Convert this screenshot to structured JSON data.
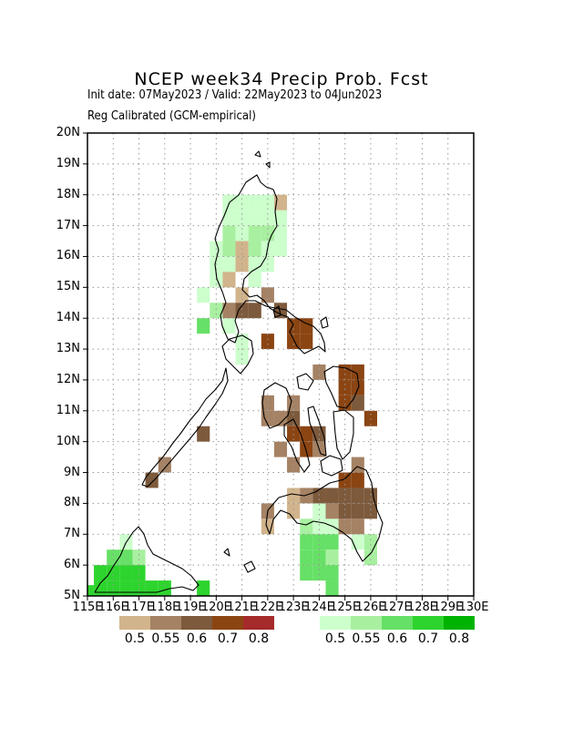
{
  "title": "NCEP week34 Precip Prob. Fcst",
  "subtitle_line1": "Init date: 07May2023 / Valid: 22May2023 to 04Jun2023",
  "subtitle_line2": "Reg Calibrated (GCM-empirical)",
  "y_axis": {
    "labels": [
      "5N",
      "6N",
      "7N",
      "8N",
      "9N",
      "10N",
      "11N",
      "12N",
      "13N",
      "14N",
      "15N",
      "16N",
      "17N",
      "18N",
      "19N",
      "20N"
    ]
  },
  "x_axis": {
    "labels": [
      "115E",
      "116E",
      "117E",
      "118E",
      "119E",
      "120E",
      "121E",
      "122E",
      "123E",
      "124E",
      "125E",
      "126E",
      "127E",
      "128E",
      "129E",
      "130E"
    ]
  },
  "legend_below": {
    "colors": [
      "#d2b48c",
      "#a58264",
      "#7d5a3c",
      "#8b4513",
      "#a52a2a"
    ],
    "labels": [
      "0.5",
      "0.55",
      "0.6",
      "0.7",
      "0.8"
    ]
  },
  "legend_above": {
    "colors": [
      "#ccffcc",
      "#a8f0a0",
      "#66e066",
      "#2ed42e",
      "#00b300"
    ],
    "labels": [
      "0.5",
      "0.55",
      "0.6",
      "0.7",
      "0.8"
    ]
  },
  "map_cells": {
    "above": [
      [
        120.5,
        17.75,
        0
      ],
      [
        121,
        17.75,
        0
      ],
      [
        121.5,
        17.75,
        0
      ],
      [
        122,
        17.75,
        0
      ],
      [
        120.5,
        17.25,
        0
      ],
      [
        121,
        17.25,
        0
      ],
      [
        121.5,
        17.25,
        0
      ],
      [
        122,
        17.25,
        0
      ],
      [
        122.5,
        17.25,
        0
      ],
      [
        120.5,
        16.75,
        1
      ],
      [
        121,
        16.75,
        0
      ],
      [
        121.5,
        16.75,
        1
      ],
      [
        122,
        16.75,
        1
      ],
      [
        122.5,
        16.75,
        0
      ],
      [
        120,
        16.25,
        0
      ],
      [
        120.5,
        16.25,
        1
      ],
      [
        121.5,
        16.25,
        1
      ],
      [
        122,
        16.25,
        0
      ],
      [
        122.5,
        16.25,
        0
      ],
      [
        120,
        15.75,
        0
      ],
      [
        120.5,
        15.75,
        0
      ],
      [
        121.5,
        15.75,
        0
      ],
      [
        122,
        15.75,
        0
      ],
      [
        120,
        15.25,
        0
      ],
      [
        120.5,
        15.25,
        0
      ],
      [
        121.5,
        15.25,
        0
      ],
      [
        119.5,
        14.75,
        0
      ],
      [
        120,
        14.25,
        1
      ],
      [
        119.5,
        13.75,
        2
      ],
      [
        120.5,
        13.75,
        0
      ],
      [
        121,
        13.25,
        0
      ],
      [
        121,
        12.75,
        0
      ],
      [
        124,
        7.75,
        0
      ],
      [
        123.5,
        7.25,
        1
      ],
      [
        124,
        7.25,
        0
      ],
      [
        124.5,
        7.25,
        0
      ],
      [
        123.5,
        6.75,
        2
      ],
      [
        124,
        6.75,
        2
      ],
      [
        124.5,
        6.75,
        2
      ],
      [
        125.5,
        6.75,
        0
      ],
      [
        126,
        6.75,
        1
      ],
      [
        123.5,
        6.25,
        2
      ],
      [
        124,
        6.25,
        2
      ],
      [
        124.5,
        6.25,
        1
      ],
      [
        126,
        6.25,
        1
      ],
      [
        123.5,
        5.75,
        2
      ],
      [
        124,
        5.75,
        2
      ],
      [
        124.5,
        5.75,
        2
      ],
      [
        124.5,
        5.25,
        2
      ],
      [
        116.5,
        6.75,
        0
      ],
      [
        116,
        6.25,
        2
      ],
      [
        116.5,
        6.25,
        2
      ],
      [
        117,
        6.25,
        1
      ],
      [
        115.5,
        5.75,
        3
      ],
      [
        116,
        5.75,
        3
      ],
      [
        116.5,
        5.75,
        3
      ],
      [
        117,
        5.75,
        3
      ],
      [
        115.5,
        5.25,
        3
      ],
      [
        116,
        5.25,
        3
      ],
      [
        116.5,
        5.25,
        3
      ],
      [
        117,
        5.25,
        3
      ],
      [
        117.5,
        5.25,
        3
      ],
      [
        118,
        5.25,
        3
      ],
      [
        119.5,
        5.25,
        3
      ],
      [
        115,
        5.1,
        3
      ]
    ],
    "below": [
      [
        122.5,
        17.75,
        0
      ],
      [
        121,
        16.25,
        0
      ],
      [
        121,
        15.75,
        0
      ],
      [
        120.5,
        15.25,
        0
      ],
      [
        121,
        14.75,
        0
      ],
      [
        122,
        14.75,
        1
      ],
      [
        120.5,
        14.25,
        1
      ],
      [
        121,
        14.25,
        2
      ],
      [
        121.5,
        14.25,
        2
      ],
      [
        122.5,
        14.25,
        2
      ],
      [
        123,
        13.75,
        3
      ],
      [
        123.5,
        13.75,
        3
      ],
      [
        122,
        13.25,
        3
      ],
      [
        123,
        13.25,
        3
      ],
      [
        123.5,
        13.25,
        3
      ],
      [
        125,
        12.25,
        3
      ],
      [
        125.5,
        12.25,
        3
      ],
      [
        124,
        12.25,
        1
      ],
      [
        125.5,
        11.75,
        3
      ],
      [
        125,
        11.75,
        3
      ],
      [
        122,
        11.25,
        1
      ],
      [
        123,
        11.25,
        1
      ],
      [
        125,
        11.25,
        3
      ],
      [
        125.5,
        11.25,
        2
      ],
      [
        122,
        10.75,
        1
      ],
      [
        122.5,
        10.75,
        1
      ],
      [
        123,
        10.75,
        2
      ],
      [
        126,
        10.75,
        3
      ],
      [
        123,
        10.25,
        3
      ],
      [
        123.5,
        10.25,
        3
      ],
      [
        124,
        10.25,
        2
      ],
      [
        122.5,
        9.75,
        1
      ],
      [
        123.5,
        9.75,
        3
      ],
      [
        124,
        9.75,
        1
      ],
      [
        123,
        9.25,
        1
      ],
      [
        125.5,
        9.25,
        1
      ],
      [
        125,
        8.75,
        3
      ],
      [
        125.5,
        8.75,
        3
      ],
      [
        123,
        8.25,
        0
      ],
      [
        123.5,
        8.25,
        1
      ],
      [
        124,
        8.25,
        2
      ],
      [
        124.5,
        8.25,
        2
      ],
      [
        125,
        8.25,
        2
      ],
      [
        125.5,
        8.25,
        2
      ],
      [
        126,
        8.25,
        2
      ],
      [
        122,
        7.75,
        1
      ],
      [
        123,
        7.75,
        0
      ],
      [
        124.5,
        7.75,
        1
      ],
      [
        125,
        7.75,
        2
      ],
      [
        125.5,
        7.75,
        2
      ],
      [
        126,
        7.75,
        2
      ],
      [
        122,
        7.25,
        0
      ],
      [
        125,
        7.25,
        1
      ],
      [
        125.5,
        7.25,
        1
      ],
      [
        119.5,
        10.25,
        2
      ],
      [
        118,
        9.25,
        1
      ],
      [
        117.5,
        8.75,
        2
      ]
    ]
  }
}
